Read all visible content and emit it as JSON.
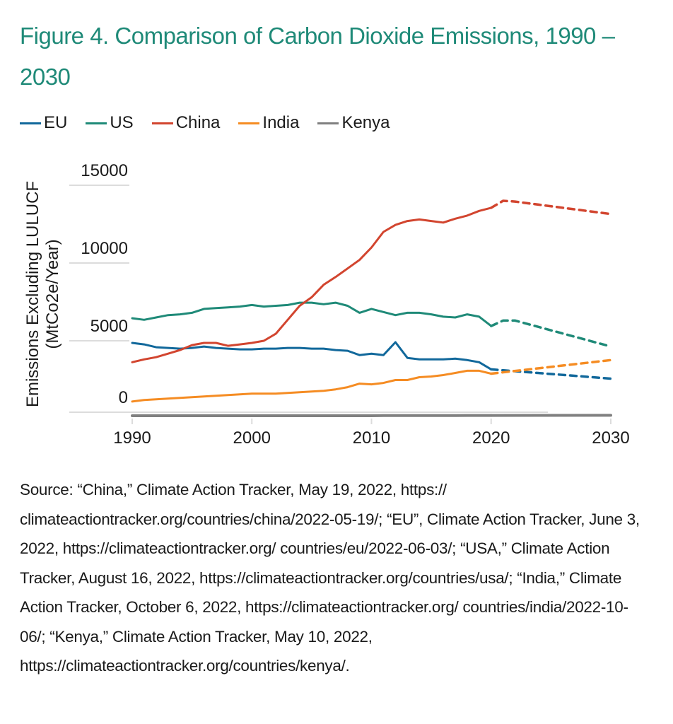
{
  "title": "Figure 4. Comparison of Carbon Dioxide Emissions, 1990 – 2030",
  "source_text": "Source: “China,” Climate Action Tracker, May 19, 2022, https:// climateactiontracker.org/countries/china/2022-05-19/; “EU”, Climate Action Tracker, June 3, 2022, https://climateactiontracker.org/ countries/eu/2022-06-03/; “USA,” Climate Action Tracker, August 16, 2022, https://climateactiontracker.org/countries/usa/; “India,” Climate Action Tracker, October 6, 2022, https://climateactiontracker.org/ countries/india/2022-10-06/; “Kenya,” Climate Action Tracker, May 10, 2022, https://climateactiontracker.org/countries/kenya/.",
  "chart_data": {
    "type": "line",
    "title": "Figure 4. Comparison of Carbon Dioxide Emissions, 1990 – 2030",
    "xlabel": "",
    "ylabel": "Emissions Excluding LULUCF (MtCo2e/Year)",
    "ylabel_line1": "Emissions Excluding LULUCF",
    "ylabel_line2": "(MtCo2e/Year)",
    "xlim": [
      1990,
      2030
    ],
    "ylim": [
      0,
      15000
    ],
    "x_ticks": [
      1990,
      2000,
      2010,
      2020,
      2030
    ],
    "x_tick_labels": [
      "1990",
      "2000",
      "2010",
      "2020",
      "2030"
    ],
    "y_ticks": [
      0,
      5000,
      10000,
      15000
    ],
    "y_tick_labels": [
      "0",
      "5000",
      "10000",
      "15000"
    ],
    "grid": true,
    "legend_position": "top-left",
    "historical_years": [
      1990,
      1991,
      1992,
      1993,
      1994,
      1995,
      1996,
      1997,
      1998,
      1999,
      2000,
      2001,
      2002,
      2003,
      2004,
      2005,
      2006,
      2007,
      2008,
      2009,
      2010,
      2011,
      2012,
      2013,
      2014,
      2015,
      2016,
      2017,
      2018,
      2019,
      2020
    ],
    "series": [
      {
        "name": "EU",
        "color": "#11689b",
        "historical": [
          4850,
          4750,
          4550,
          4500,
          4450,
          4500,
          4600,
          4500,
          4450,
          4400,
          4400,
          4450,
          4450,
          4500,
          4500,
          4450,
          4450,
          4350,
          4300,
          4000,
          4100,
          4000,
          4900,
          3800,
          3700,
          3700,
          3700,
          3750,
          3650,
          3500,
          3000
        ],
        "projection": [
          [
            2020,
            3000
          ],
          [
            2030,
            2350
          ]
        ]
      },
      {
        "name": "US",
        "color": "#1f8a78",
        "historical": [
          6450,
          6350,
          6500,
          6650,
          6700,
          6800,
          7050,
          7100,
          7150,
          7200,
          7300,
          7200,
          7250,
          7300,
          7450,
          7450,
          7350,
          7450,
          7250,
          6800,
          7050,
          6850,
          6650,
          6800,
          6800,
          6700,
          6550,
          6500,
          6700,
          6550,
          5950
        ],
        "projection": [
          [
            2020,
            5950
          ],
          [
            2021,
            6300
          ],
          [
            2022,
            6300
          ],
          [
            2030,
            4600
          ]
        ]
      },
      {
        "name": "China",
        "color": "#d2452f",
        "historical": [
          3500,
          3700,
          3850,
          4100,
          4350,
          4700,
          4850,
          4850,
          4650,
          4750,
          4850,
          5000,
          5450,
          6350,
          7250,
          7800,
          8600,
          9100,
          9650,
          10200,
          11000,
          12000,
          12450,
          12700,
          12800,
          12700,
          12600,
          12850,
          13050,
          13350,
          13550
        ],
        "projection": [
          [
            2020,
            13550
          ],
          [
            2021,
            14000
          ],
          [
            2022,
            13950
          ],
          [
            2030,
            13150
          ]
        ]
      },
      {
        "name": "India",
        "color": "#f58c23",
        "historical": [
          750,
          850,
          900,
          950,
          1000,
          1050,
          1100,
          1150,
          1200,
          1250,
          1300,
          1300,
          1300,
          1350,
          1400,
          1450,
          1500,
          1600,
          1750,
          2000,
          1950,
          2050,
          2250,
          2250,
          2450,
          2500,
          2600,
          2750,
          2900,
          2900,
          2700
        ],
        "projection": [
          [
            2020,
            2700
          ],
          [
            2030,
            3650
          ]
        ]
      },
      {
        "name": "Kenya",
        "color": "#808080",
        "historical": [
          50,
          50,
          50,
          50,
          50,
          50,
          50,
          50,
          50,
          50,
          50,
          50,
          50,
          50,
          50,
          50,
          50,
          50,
          50,
          50,
          50,
          60,
          60,
          60,
          60,
          60,
          60,
          60,
          70,
          70,
          70
        ],
        "projection": [
          [
            2020,
            70
          ],
          [
            2030,
            80
          ]
        ]
      }
    ]
  }
}
